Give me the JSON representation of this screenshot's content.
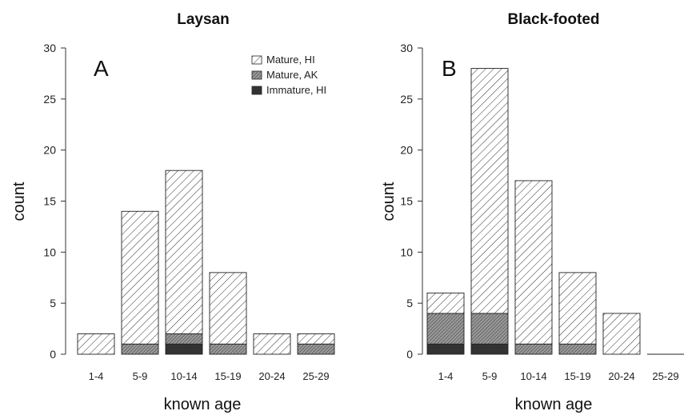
{
  "chart_data": [
    {
      "type": "bar",
      "stacked": true,
      "title": "Laysan",
      "panel_label": "A",
      "xlabel": "known age",
      "ylabel": "count",
      "ylim": [
        0,
        30
      ],
      "yticks": [
        0,
        5,
        10,
        15,
        20,
        25,
        30
      ],
      "categories": [
        "1-4",
        "5-9",
        "10-14",
        "15-19",
        "20-24",
        "25-29"
      ],
      "series": [
        {
          "name": "Immature, HI",
          "values": [
            0,
            0,
            1,
            0,
            0,
            0
          ]
        },
        {
          "name": "Mature, AK",
          "values": [
            0,
            1,
            1,
            1,
            0,
            1
          ]
        },
        {
          "name": "Mature, HI",
          "values": [
            2,
            13,
            16,
            7,
            2,
            1
          ]
        }
      ],
      "legend": {
        "placement": "top-right",
        "entries": [
          "Mature, HI",
          "Mature, AK",
          "Immature, HI"
        ]
      }
    },
    {
      "type": "bar",
      "stacked": true,
      "title": "Black-footed",
      "panel_label": "B",
      "xlabel": "known age",
      "ylabel": "count",
      "ylim": [
        0,
        30
      ],
      "yticks": [
        0,
        5,
        10,
        15,
        20,
        25,
        30
      ],
      "categories": [
        "1-4",
        "5-9",
        "10-14",
        "15-19",
        "20-24",
        "25-29"
      ],
      "series": [
        {
          "name": "Immature, HI",
          "values": [
            1,
            1,
            0,
            0,
            0,
            0
          ]
        },
        {
          "name": "Mature, AK",
          "values": [
            3,
            3,
            1,
            1,
            0,
            0
          ]
        },
        {
          "name": "Mature, HI",
          "values": [
            2,
            24,
            16,
            7,
            4,
            0
          ]
        }
      ]
    }
  ]
}
